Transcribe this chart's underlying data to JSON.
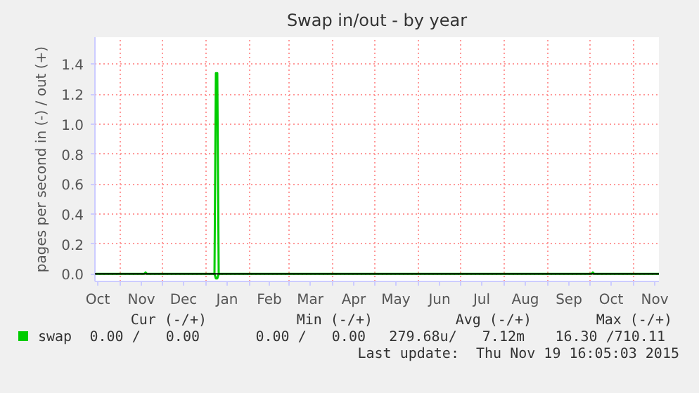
{
  "chart_data": {
    "type": "line",
    "title": "Swap in/out - by year",
    "ylabel": "pages per second in (-) / out (+)",
    "series": [
      {
        "name": "swap",
        "color": "#00cc00",
        "x": [
          "2014-10-14",
          "2014-11-18",
          "2014-11-19",
          "2014-11-20",
          "2015-01-07",
          "2015-01-08",
          "2015-01-09",
          "2015-01-10",
          "2015-10-02",
          "2015-10-03",
          "2015-10-04",
          "2015-11-19"
        ],
        "values": [
          0,
          0,
          0.01,
          0,
          0,
          1.34,
          1.34,
          0,
          0,
          0.01,
          0,
          0
        ]
      },
      {
        "color": "#00cc00",
        "x": [
          "2015-01-07",
          "2015-01-08",
          "2015-01-09",
          "2015-01-10"
        ],
        "values": [
          0,
          -0.03,
          -0.03,
          0
        ]
      }
    ],
    "xlim": [
      "2014-10-14",
      "2015-11-19"
    ],
    "xticks": [
      {
        "value": "2014-10-16",
        "label": "Oct"
      },
      {
        "value": "2014-11-01",
        "label": null
      },
      {
        "value": "2014-11-16",
        "label": "Nov"
      },
      {
        "value": "2014-12-01",
        "label": null
      },
      {
        "value": "2014-12-16",
        "label": "Dec"
      },
      {
        "value": "2015-01-01",
        "label": null
      },
      {
        "value": "2015-01-16",
        "label": "Jan"
      },
      {
        "value": "2015-02-01",
        "label": null
      },
      {
        "value": "2015-02-15",
        "label": "Feb"
      },
      {
        "value": "2015-03-01",
        "label": null
      },
      {
        "value": "2015-03-16",
        "label": "Mar"
      },
      {
        "value": "2015-04-01",
        "label": null
      },
      {
        "value": "2015-04-16",
        "label": "Apr"
      },
      {
        "value": "2015-05-01",
        "label": null
      },
      {
        "value": "2015-05-16",
        "label": "May"
      },
      {
        "value": "2015-06-01",
        "label": null
      },
      {
        "value": "2015-06-16",
        "label": "Jun"
      },
      {
        "value": "2015-07-01",
        "label": null
      },
      {
        "value": "2015-07-16",
        "label": "Jul"
      },
      {
        "value": "2015-08-01",
        "label": null
      },
      {
        "value": "2015-08-16",
        "label": "Aug"
      },
      {
        "value": "2015-09-01",
        "label": null
      },
      {
        "value": "2015-09-16",
        "label": "Sep"
      },
      {
        "value": "2015-10-01",
        "label": null
      },
      {
        "value": "2015-10-16",
        "label": "Oct"
      },
      {
        "value": "2015-11-01",
        "label": null
      },
      {
        "value": "2015-11-16",
        "label": "Nov"
      }
    ],
    "ylim": [
      -0.05,
      1.58
    ],
    "yticks": [
      {
        "value": 0,
        "label": "0.0"
      },
      {
        "value": 0.2,
        "label": "0.2"
      },
      {
        "value": 0.4,
        "label": "0.4"
      },
      {
        "value": 0.6,
        "label": "0.6"
      },
      {
        "value": 0.8,
        "label": "0.8"
      },
      {
        "value": 1.0,
        "label": "1.0"
      },
      {
        "value": 1.2,
        "label": "1.2"
      },
      {
        "value": 1.4,
        "label": "1.4"
      }
    ],
    "ref_lines": [
      {
        "axis": "y",
        "value": 0,
        "color": "#000000"
      }
    ],
    "grid": true,
    "legend": "bottom",
    "marker": "none",
    "line_style": "solid",
    "annotations": [
      "Cur (-/+)",
      "Min (-/+)",
      "Avg (-/+)",
      "Max (-/+)",
      "0.00 /   0.00",
      "0.00 /   0.00",
      "279.68u/   7.12m",
      "16.30 /710.11",
      "Last update:  Thu Nov 19 16:05:03 2015"
    ]
  }
}
